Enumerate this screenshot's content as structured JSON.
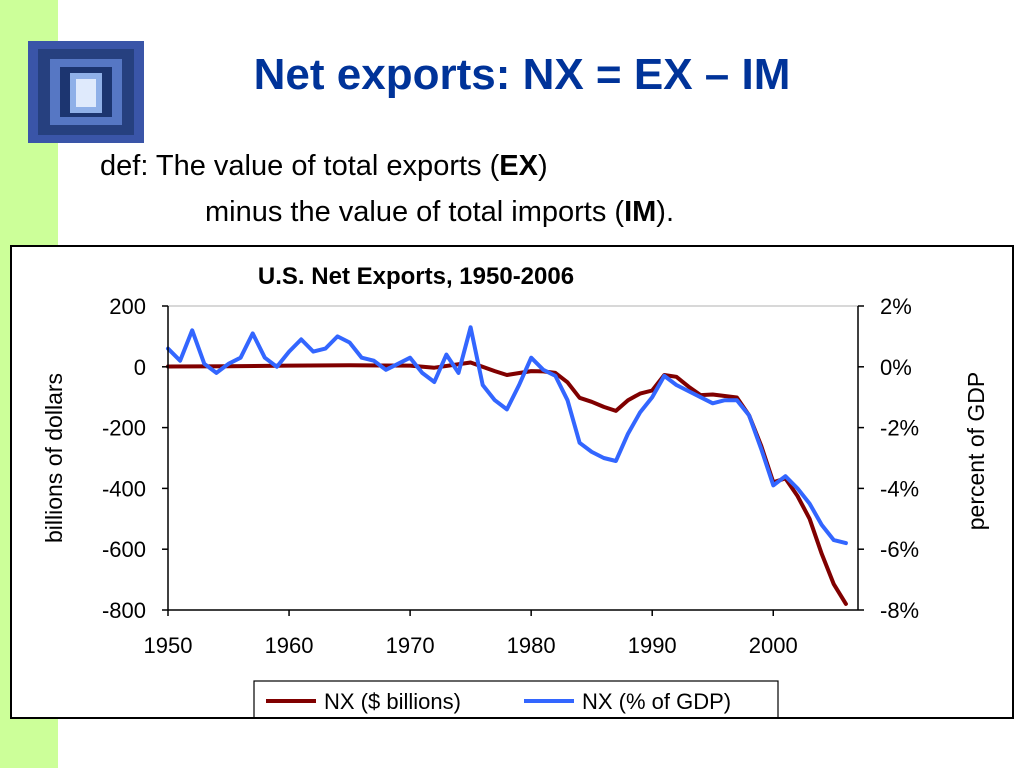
{
  "slide": {
    "title": "Net exports:  NX = EX – IM",
    "def_line1_prefix": "def:  The value of total exports (",
    "def_line1_bold": "EX",
    "def_line1_suffix": ")",
    "def_line2_prefix": "minus the value of total imports (",
    "def_line2_bold": "IM",
    "def_line2_suffix": ")."
  },
  "colors": {
    "title": "#003399",
    "sidebar": "#ccff99",
    "nx_billions": "#800000",
    "nx_pct_gdp": "#3366ff"
  },
  "chart_data": {
    "type": "line",
    "title": "U.S. Net Exports, 1950-2006",
    "xlabel": "",
    "ylabel_left": "billions of dollars",
    "ylabel_right": "percent of GDP",
    "xlim": [
      1950,
      2007
    ],
    "ylim_left": [
      -800,
      200
    ],
    "ylim_right": [
      -8,
      2
    ],
    "x_ticks": [
      "1950",
      "1960",
      "1970",
      "1980",
      "1990",
      "2000"
    ],
    "y_ticks_left": [
      "200",
      "0",
      "-200",
      "-400",
      "-600",
      "-800"
    ],
    "y_ticks_right": [
      "2%",
      "0%",
      "-2%",
      "-4%",
      "-6%",
      "-8%"
    ],
    "grid": false,
    "legend_position": "bottom",
    "series": [
      {
        "name": "NX ($ billions)",
        "axis": "left",
        "x": [
          1950,
          1955,
          1960,
          1965,
          1970,
          1972,
          1975,
          1977,
          1978,
          1980,
          1981,
          1982,
          1983,
          1984,
          1985,
          1986,
          1987,
          1988,
          1989,
          1990,
          1991,
          1992,
          1993,
          1994,
          1995,
          1996,
          1997,
          1998,
          1999,
          2000,
          2001,
          2002,
          2003,
          2004,
          2005,
          2006
        ],
        "values": [
          1,
          2,
          4,
          5,
          4,
          -3,
          14,
          -14,
          -27,
          -14,
          -15,
          -20,
          -51,
          -102,
          -115,
          -132,
          -145,
          -110,
          -88,
          -78,
          -27,
          -33,
          -65,
          -93,
          -91,
          -96,
          -101,
          -160,
          -260,
          -380,
          -367,
          -425,
          -500,
          -615,
          -715,
          -780
        ]
      },
      {
        "name": "NX (% of GDP)",
        "axis": "right",
        "x": [
          1950,
          1951,
          1952,
          1953,
          1954,
          1955,
          1956,
          1957,
          1958,
          1959,
          1960,
          1961,
          1962,
          1963,
          1964,
          1965,
          1966,
          1967,
          1968,
          1969,
          1970,
          1971,
          1972,
          1973,
          1974,
          1975,
          1976,
          1977,
          1978,
          1979,
          1980,
          1981,
          1982,
          1983,
          1984,
          1985,
          1986,
          1987,
          1988,
          1989,
          1990,
          1991,
          1992,
          1993,
          1994,
          1995,
          1996,
          1997,
          1998,
          1999,
          2000,
          2001,
          2002,
          2003,
          2004,
          2005,
          2006
        ],
        "values": [
          0.6,
          0.2,
          1.2,
          0.1,
          -0.2,
          0.1,
          0.3,
          1.1,
          0.3,
          0.0,
          0.5,
          0.9,
          0.5,
          0.6,
          1.0,
          0.8,
          0.3,
          0.2,
          -0.1,
          0.1,
          0.3,
          -0.2,
          -0.5,
          0.4,
          -0.2,
          1.3,
          -0.6,
          -1.1,
          -1.4,
          -0.6,
          0.3,
          -0.1,
          -0.3,
          -1.1,
          -2.5,
          -2.8,
          -3.0,
          -3.1,
          -2.2,
          -1.5,
          -1.0,
          -0.3,
          -0.6,
          -0.8,
          -1.0,
          -1.2,
          -1.1,
          -1.1,
          -1.6,
          -2.7,
          -3.9,
          -3.6,
          -4.0,
          -4.5,
          -5.2,
          -5.7,
          -5.8
        ]
      }
    ]
  }
}
